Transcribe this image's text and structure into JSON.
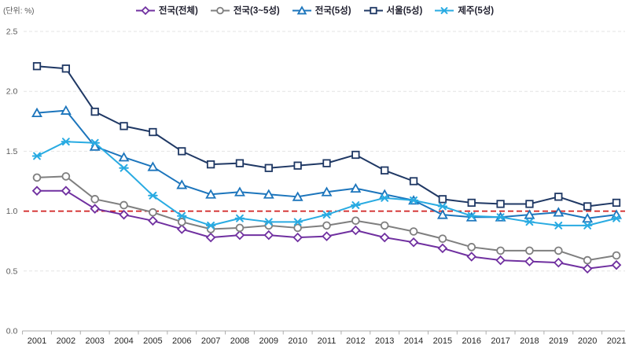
{
  "chart_data": {
    "type": "line",
    "title": "",
    "unit_label": "(단위: %)",
    "legend_position": "top",
    "grid": "horizontal-dashed",
    "ylim": [
      0,
      2.5
    ],
    "yticks": [
      0.0,
      0.5,
      1.0,
      1.5,
      2.0,
      2.5
    ],
    "reference_line": {
      "value": 1.0,
      "color": "#D02020",
      "style": "dashed"
    },
    "x": [
      "2001",
      "2002",
      "2003",
      "2004",
      "2005",
      "2006",
      "2007",
      "2008",
      "2009",
      "2010",
      "2011",
      "2012",
      "2013",
      "2014",
      "2015",
      "2016",
      "2017",
      "2018",
      "2019",
      "2020",
      "2021"
    ],
    "series": [
      {
        "name": "전국(전체)",
        "marker": "diamond",
        "color": "#7030A0",
        "values": [
          1.17,
          1.17,
          1.02,
          0.97,
          0.92,
          0.85,
          0.78,
          0.8,
          0.8,
          0.78,
          0.79,
          0.84,
          0.78,
          0.74,
          0.69,
          0.62,
          0.59,
          0.58,
          0.57,
          0.52,
          0.55
        ]
      },
      {
        "name": "전국(3~5성)",
        "marker": "circle",
        "color": "#7F7F7F",
        "values": [
          1.28,
          1.29,
          1.1,
          1.05,
          0.99,
          0.91,
          0.85,
          0.86,
          0.88,
          0.86,
          0.88,
          0.92,
          0.88,
          0.83,
          0.77,
          0.7,
          0.67,
          0.67,
          0.67,
          0.59,
          0.63
        ]
      },
      {
        "name": "전국(5성)",
        "marker": "triangle",
        "color": "#1C75BC",
        "values": [
          1.82,
          1.84,
          1.54,
          1.45,
          1.37,
          1.22,
          1.14,
          1.16,
          1.14,
          1.12,
          1.16,
          1.19,
          1.14,
          1.09,
          0.97,
          0.95,
          0.95,
          0.97,
          0.99,
          0.94,
          0.97
        ]
      },
      {
        "name": "서울(5성)",
        "marker": "square",
        "color": "#1F3864",
        "values": [
          2.21,
          2.19,
          1.83,
          1.71,
          1.66,
          1.5,
          1.39,
          1.4,
          1.36,
          1.38,
          1.4,
          1.47,
          1.34,
          1.25,
          1.1,
          1.07,
          1.06,
          1.06,
          1.12,
          1.04,
          1.07
        ]
      },
      {
        "name": "제주(5성)",
        "marker": "star",
        "color": "#29ABE2",
        "values": [
          1.46,
          1.58,
          1.57,
          1.36,
          1.13,
          0.96,
          0.88,
          0.94,
          0.91,
          0.91,
          0.97,
          1.05,
          1.11,
          1.09,
          1.04,
          0.96,
          0.95,
          0.91,
          0.88,
          0.88,
          0.94
        ]
      }
    ],
    "colors": {
      "gridline": "#E3E3E3",
      "axis": "#ADADAD",
      "tick_label": "#595959",
      "x_label": "#262626"
    }
  }
}
